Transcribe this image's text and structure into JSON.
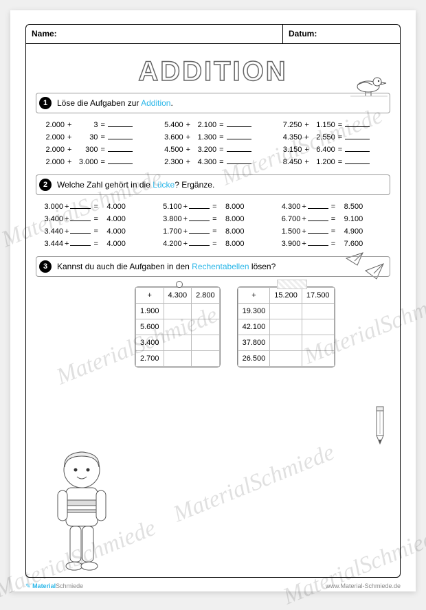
{
  "header": {
    "name_label": "Name:",
    "date_label": "Datum:"
  },
  "title": "ADDITION",
  "section1": {
    "prefix": "Löse die Aufgaben zur ",
    "highlight": "Addition",
    "suffix": "."
  },
  "section2": {
    "prefix": "Welche Zahl gehört in die ",
    "highlight": "Lücke",
    "suffix": "? Ergänze."
  },
  "section3": {
    "prefix": "Kannst du auch die Aufgaben in den ",
    "highlight": "Rechentabellen",
    "suffix": " lösen?"
  },
  "ex1": {
    "c1": [
      {
        "a": "2.000",
        "b": "3"
      },
      {
        "a": "2.000",
        "b": "30"
      },
      {
        "a": "2.000",
        "b": "300"
      },
      {
        "a": "2.000",
        "b": "3.000"
      }
    ],
    "c2": [
      {
        "a": "5.400",
        "b": "2.100"
      },
      {
        "a": "3.600",
        "b": "1.300"
      },
      {
        "a": "4.500",
        "b": "3.200"
      },
      {
        "a": "2.300",
        "b": "4.300"
      }
    ],
    "c3": [
      {
        "a": "7.250",
        "b": "1.150"
      },
      {
        "a": "4.350",
        "b": "2.550"
      },
      {
        "a": "3.150",
        "b": "6.400"
      },
      {
        "a": "8.450",
        "b": "1.200"
      }
    ]
  },
  "ex2": {
    "c1": [
      {
        "a": "3.000",
        "r": "4.000"
      },
      {
        "a": "3.400",
        "r": "4.000"
      },
      {
        "a": "3.440",
        "r": "4.000"
      },
      {
        "a": "3.444",
        "r": "4.000"
      }
    ],
    "c2": [
      {
        "a": "5.100",
        "r": "8.000"
      },
      {
        "a": "3.800",
        "r": "8.000"
      },
      {
        "a": "1.700",
        "r": "8.000"
      },
      {
        "a": "4.200",
        "r": "8.000"
      }
    ],
    "c3": [
      {
        "a": "4.300",
        "r": "8.500"
      },
      {
        "a": "6.700",
        "r": "9.100"
      },
      {
        "a": "1.500",
        "r": "4.900"
      },
      {
        "a": "3.900",
        "r": "7.600"
      }
    ]
  },
  "tables": {
    "t1": {
      "op": "+",
      "cols": [
        "4.300",
        "2.800"
      ],
      "rows": [
        "1.900",
        "5.600",
        "3.400",
        "2.700"
      ]
    },
    "t2": {
      "op": "+",
      "cols": [
        "15.200",
        "17.500"
      ],
      "rows": [
        "19.300",
        "42.100",
        "37.800",
        "26.500"
      ]
    }
  },
  "footer": {
    "brand_icon": "✎",
    "brand_bold": "Material",
    "brand_rest": "Schmiede",
    "url": "www.Material-Schmiede.de"
  },
  "watermark": "MaterialSchmiede",
  "colors": {
    "accent": "#29b6e8",
    "border": "#000000",
    "watermark": "rgba(0,0,0,0.12)"
  }
}
